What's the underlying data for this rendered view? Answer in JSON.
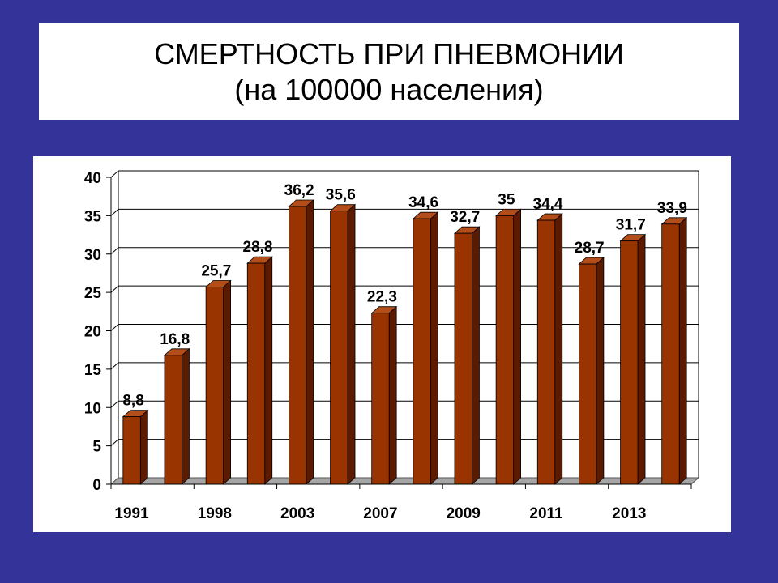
{
  "slide": {
    "title": "СМЕРТНОСТЬ ПРИ ПНЕВМОНИИ",
    "subtitle": "(на 100000 населения)"
  },
  "colors": {
    "background": "#333399",
    "bar_front": "#993300",
    "bar_side": "#5c1a00",
    "bar_top": "#b34d1a",
    "grid": "#000000",
    "floor": "#a6a6a6"
  },
  "chart_data": {
    "type": "bar",
    "title": "",
    "xlabel": "",
    "ylabel": "",
    "ylim": [
      0,
      40
    ],
    "yticks": [
      0,
      5,
      10,
      15,
      20,
      25,
      30,
      35,
      40
    ],
    "grid": true,
    "three_d": true,
    "categories": [
      "1991",
      "",
      "1998",
      "",
      "2003",
      "",
      "2007",
      "",
      "2009",
      "",
      "2011",
      "",
      "2013",
      ""
    ],
    "values": [
      8.8,
      16.8,
      25.7,
      28.8,
      36.2,
      35.6,
      22.3,
      34.6,
      32.7,
      35,
      34.4,
      28.7,
      31.7,
      33.9
    ],
    "data_labels": [
      "8,8",
      "16,8",
      "25,7",
      "28,8",
      "36,2",
      "35,6",
      "22,3",
      "34,6",
      "32,7",
      "35",
      "34,4",
      "28,7",
      "31,7",
      "33,9"
    ]
  }
}
